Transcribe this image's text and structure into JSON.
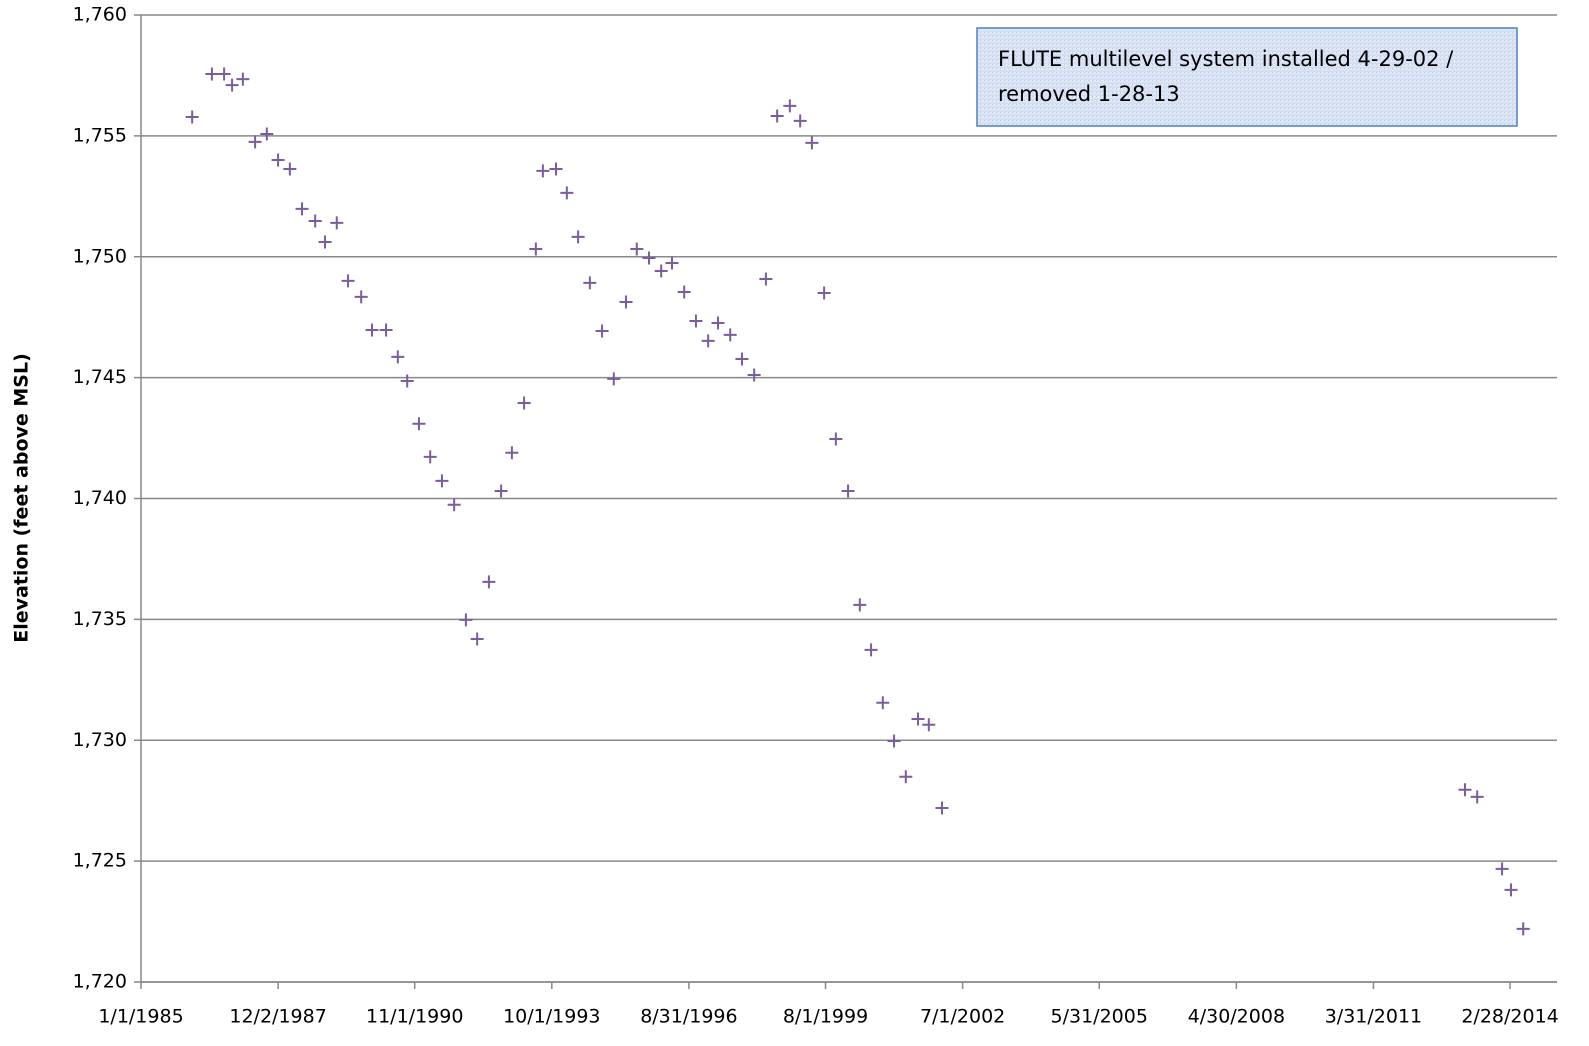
{
  "chart_data": {
    "type": "scatter",
    "y_label": "Elevation (feet above MSL)",
    "annotation": [
      "FLUTE multilevel system installed 4-29-02 /",
      "removed 1-28-13"
    ],
    "color": "#7b5c9f",
    "grid": true,
    "xlim": [
      1985.0,
      2015.16
    ],
    "xticks": [
      {
        "value": 1985.0,
        "label": "1/1/1985"
      },
      {
        "value": 1987.92,
        "label": "12/2/1987"
      },
      {
        "value": 1990.83,
        "label": "11/1/1990"
      },
      {
        "value": 1993.75,
        "label": "10/1/1993"
      },
      {
        "value": 1996.67,
        "label": "8/31/1996"
      },
      {
        "value": 1999.58,
        "label": "8/1/1999"
      },
      {
        "value": 2002.5,
        "label": "7/1/2002"
      },
      {
        "value": 2005.41,
        "label": "5/31/2005"
      },
      {
        "value": 2008.33,
        "label": "4/30/2008"
      },
      {
        "value": 2011.25,
        "label": "3/31/2011"
      },
      {
        "value": 2014.16,
        "label": "2/28/2014"
      }
    ],
    "ylim": [
      1720,
      1760
    ],
    "yticks": [
      {
        "value": 1720,
        "label": "1,720"
      },
      {
        "value": 1725,
        "label": "1,725"
      },
      {
        "value": 1730,
        "label": "1,730"
      },
      {
        "value": 1735,
        "label": "1,735"
      },
      {
        "value": 1740,
        "label": "1,740"
      },
      {
        "value": 1745,
        "label": "1,745"
      },
      {
        "value": 1750,
        "label": "1,750"
      },
      {
        "value": 1755,
        "label": "1,755"
      },
      {
        "value": 1760,
        "label": "1,760"
      }
    ],
    "x": [
      1986.09,
      1986.51,
      1986.77,
      1986.94,
      1987.17,
      1987.43,
      1987.68,
      1987.92,
      1988.17,
      1988.43,
      1988.71,
      1988.92,
      1989.17,
      1989.41,
      1989.69,
      1989.92,
      1990.22,
      1990.47,
      1990.67,
      1990.92,
      1991.16,
      1991.41,
      1991.67,
      1991.92,
      1992.16,
      1992.41,
      1992.67,
      1992.9,
      1993.16,
      1993.41,
      1993.56,
      1993.84,
      1994.07,
      1994.31,
      1994.56,
      1994.82,
      1995.07,
      1995.33,
      1995.56,
      1995.82,
      1996.08,
      1996.31,
      1996.57,
      1996.82,
      1997.08,
      1997.29,
      1997.55,
      1997.8,
      1998.06,
      1998.31,
      1998.55,
      1998.82,
      1999.04,
      1999.29,
      1999.55,
      1999.8,
      2000.06,
      2000.31,
      2000.55,
      2000.8,
      2001.04,
      2001.29,
      2001.55,
      2001.78,
      2002.06,
      2013.2,
      2013.46,
      2013.99,
      2014.18,
      2014.44
    ],
    "values": [
      1755.78,
      1757.56,
      1757.56,
      1757.1,
      1757.35,
      1754.75,
      1755.08,
      1754.0,
      1753.63,
      1751.98,
      1751.48,
      1750.61,
      1751.4,
      1749.0,
      1748.34,
      1746.97,
      1746.97,
      1745.86,
      1744.86,
      1743.09,
      1741.72,
      1740.73,
      1739.74,
      1734.98,
      1734.19,
      1736.55,
      1740.31,
      1741.89,
      1743.95,
      1750.32,
      1753.55,
      1753.63,
      1752.64,
      1750.82,
      1748.92,
      1746.93,
      1744.95,
      1748.13,
      1750.32,
      1749.95,
      1749.41,
      1749.74,
      1748.54,
      1747.34,
      1746.52,
      1747.26,
      1746.77,
      1745.77,
      1745.11,
      1749.08,
      1755.82,
      1756.24,
      1755.62,
      1754.71,
      1748.5,
      1742.46,
      1740.31,
      1735.6,
      1733.74,
      1731.55,
      1729.97,
      1728.49,
      1730.88,
      1730.64,
      1727.2,
      1727.95,
      1727.66,
      1724.68,
      1723.81,
      1722.2
    ]
  }
}
